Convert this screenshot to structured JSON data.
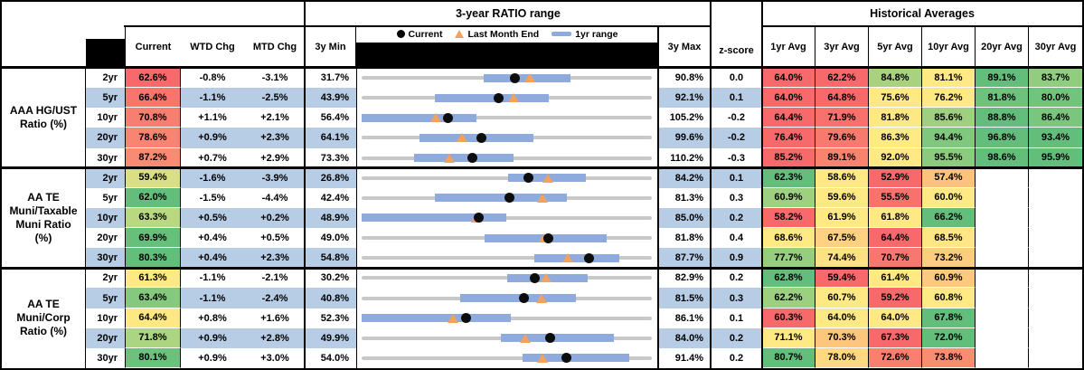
{
  "header": {
    "range_title": "3-year RATIO range",
    "hist_title": "Historical Averages"
  },
  "columns": {
    "current": "Current",
    "wtd": "WTD Chg",
    "mtd": "MTD Chg",
    "min": "3y Min",
    "max": "3y Max",
    "zscore": "z-score",
    "avgs": [
      "1yr Avg",
      "3yr Avg",
      "5yr Avg",
      "10yr Avg",
      "20yr Avg",
      "30yr Avg"
    ]
  },
  "legend": {
    "current": "Current",
    "last_month": "Last Month End",
    "range": "1yr range"
  },
  "colors": {
    "stripe": "#B7CCE5",
    "bar_blue": "#8FAADC",
    "track_gray": "#C8C8C8",
    "triangle_orange": "#F2A25C",
    "dot_black": "#0d0d0d",
    "scale_red": "#F8696B",
    "scale_yellow": "#FFE984",
    "scale_green": "#63BE7B"
  },
  "chart_data": {
    "type": "table",
    "range_plot": {
      "type": "range",
      "note": "per-row dumbbell: gray = 3y min-max, blue bar = 1yr range, dot = current, triangle = last month end",
      "legend_entries": [
        "Current",
        "Last Month End",
        "1yr range"
      ]
    },
    "groups": [
      {
        "label": "AAA HG/UST\nRatio (%)",
        "rows": [
          {
            "tenor": "2yr",
            "current": "62.6%",
            "cbg": "#F8696B",
            "wtd": "-0.8%",
            "mtd": "-3.1%",
            "min": "31.7%",
            "max": "90.8%",
            "z": "0.0",
            "bar": [
              56.3,
              73.8
            ],
            "cur": 62.6,
            "lme": 65.7,
            "avgs": [
              [
                "64.0%",
                "#F8696B"
              ],
              [
                "62.2%",
                "#F8696B"
              ],
              [
                "84.8%",
                "#A9D27F"
              ],
              [
                "81.1%",
                "#FFE984"
              ],
              [
                "89.1%",
                "#63BE7B"
              ],
              [
                "83.7%",
                "#90CD7E"
              ]
            ]
          },
          {
            "tenor": "5yr",
            "current": "66.4%",
            "cbg": "#F8756D",
            "wtd": "-1.1%",
            "mtd": "-2.5%",
            "min": "43.9%",
            "max": "92.1%",
            "z": "0.1",
            "bar": [
              55.9,
              74.7
            ],
            "cur": 66.4,
            "lme": 68.9,
            "avgs": [
              [
                "64.0%",
                "#F8696B"
              ],
              [
                "64.8%",
                "#F8696B"
              ],
              [
                "75.6%",
                "#FFE984"
              ],
              [
                "76.2%",
                "#FFE984"
              ],
              [
                "81.8%",
                "#6EC37C"
              ],
              [
                "80.0%",
                "#71C47C"
              ]
            ]
          },
          {
            "tenor": "10yr",
            "current": "70.8%",
            "cbg": "#F87F70",
            "wtd": "+1.1%",
            "mtd": "+2.1%",
            "min": "56.4%",
            "max": "105.2%",
            "z": "-0.2",
            "bar": [
              56.4,
              75.5
            ],
            "cur": 70.8,
            "lme": 68.7,
            "avgs": [
              [
                "64.4%",
                "#F8696B"
              ],
              [
                "71.9%",
                "#F8716D"
              ],
              [
                "81.8%",
                "#FDE883"
              ],
              [
                "85.6%",
                "#A0D07F"
              ],
              [
                "88.8%",
                "#63BE7B"
              ],
              [
                "86.4%",
                "#7AC67D"
              ]
            ]
          },
          {
            "tenor": "20yr",
            "current": "78.6%",
            "cbg": "#F98471",
            "wtd": "+0.9%",
            "mtd": "+2.3%",
            "min": "64.1%",
            "max": "99.6%",
            "z": "-0.2",
            "bar": [
              71.1,
              84.9
            ],
            "cur": 78.6,
            "lme": 76.3,
            "avgs": [
              [
                "76.4%",
                "#F8696B"
              ],
              [
                "79.6%",
                "#F87A6E"
              ],
              [
                "86.3%",
                "#FFEA84"
              ],
              [
                "94.4%",
                "#7FC87D"
              ],
              [
                "96.8%",
                "#63BE7B"
              ],
              [
                "93.4%",
                "#63BE7B"
              ]
            ]
          },
          {
            "tenor": "30yr",
            "current": "87.2%",
            "cbg": "#F98B72",
            "wtd": "+0.7%",
            "mtd": "+2.9%",
            "min": "73.3%",
            "max": "110.2%",
            "z": "-0.3",
            "bar": [
              79.9,
              92.4
            ],
            "cur": 87.2,
            "lme": 84.3,
            "avgs": [
              [
                "85.2%",
                "#F8696B"
              ],
              [
                "89.1%",
                "#F8836F"
              ],
              [
                "92.0%",
                "#FEE984"
              ],
              [
                "95.5%",
                "#8CCB7E"
              ],
              [
                "98.6%",
                "#63BE7B"
              ],
              [
                "95.9%",
                "#63BE7B"
              ]
            ]
          }
        ]
      },
      {
        "label": "AA TE\nMuni/Taxable\nMuni Ratio\n(%)",
        "rows": [
          {
            "tenor": "2yr",
            "current": "59.4%",
            "cbg": "#D9DF82",
            "wtd": "-1.6%",
            "mtd": "-3.9%",
            "min": "26.8%",
            "max": "84.2%",
            "z": "0.1",
            "bar": [
              55.5,
              70.8
            ],
            "cur": 59.4,
            "lme": 63.3,
            "avgs": [
              [
                "62.3%",
                "#63BE7B"
              ],
              [
                "58.6%",
                "#FFE984"
              ],
              [
                "52.9%",
                "#F8696B"
              ],
              [
                "57.4%",
                "#FDC37D"
              ],
              [
                "",
                null
              ],
              [
                "",
                null
              ]
            ]
          },
          {
            "tenor": "5yr",
            "current": "62.0%",
            "cbg": "#63BE7B",
            "wtd": "-1.5%",
            "mtd": "-4.4%",
            "min": "42.4%",
            "max": "81.3%",
            "z": "0.3",
            "bar": [
              52.1,
              69.7
            ],
            "cur": 62.0,
            "lme": 66.4,
            "avgs": [
              [
                "60.9%",
                "#9ED17F"
              ],
              [
                "59.6%",
                "#FFE984"
              ],
              [
                "55.5%",
                "#F8726D"
              ],
              [
                "60.0%",
                "#FFE984"
              ],
              [
                "",
                null
              ],
              [
                "",
                null
              ]
            ]
          },
          {
            "tenor": "10yr",
            "current": "63.3%",
            "cbg": "#B9D980",
            "wtd": "+0.5%",
            "mtd": "+0.2%",
            "min": "48.9%",
            "max": "85.0%",
            "z": "0.2",
            "bar": [
              48.9,
              66.7
            ],
            "cur": 63.3,
            "lme": 63.1,
            "avgs": [
              [
                "58.2%",
                "#F8696B"
              ],
              [
                "61.9%",
                "#FFE984"
              ],
              [
                "61.8%",
                "#FFE984"
              ],
              [
                "66.2%",
                "#63BE7B"
              ],
              [
                "",
                null
              ],
              [
                "",
                null
              ]
            ]
          },
          {
            "tenor": "20yr",
            "current": "69.9%",
            "cbg": "#66BF7B",
            "wtd": "+0.4%",
            "mtd": "+0.5%",
            "min": "49.0%",
            "max": "81.8%",
            "z": "0.4",
            "bar": [
              62.8,
              76.4
            ],
            "cur": 69.9,
            "lme": 69.4,
            "avgs": [
              [
                "68.6%",
                "#FFE984"
              ],
              [
                "67.5%",
                "#FED280"
              ],
              [
                "64.4%",
                "#F8696B"
              ],
              [
                "68.5%",
                "#FDE683"
              ],
              [
                "",
                null
              ],
              [
                "",
                null
              ]
            ]
          },
          {
            "tenor": "30yr",
            "current": "80.3%",
            "cbg": "#63BE7B",
            "wtd": "+0.4%",
            "mtd": "+2.3%",
            "min": "54.8%",
            "max": "87.7%",
            "z": "0.9",
            "bar": [
              74.2,
              83.7
            ],
            "cur": 80.3,
            "lme": 78.0,
            "avgs": [
              [
                "77.7%",
                "#95CE7F"
              ],
              [
                "74.4%",
                "#FEE183"
              ],
              [
                "70.7%",
                "#F87870"
              ],
              [
                "73.2%",
                "#FCCD7F"
              ],
              [
                "",
                null
              ],
              [
                "",
                null
              ]
            ]
          }
        ]
      },
      {
        "label": "AA TE\nMuni/Corp\nRatio (%)",
        "rows": [
          {
            "tenor": "2yr",
            "current": "61.3%",
            "cbg": "#FFE984",
            "wtd": "-1.1%",
            "mtd": "-2.1%",
            "min": "30.2%",
            "max": "82.9%",
            "z": "0.2",
            "bar": [
              56.4,
              70.8
            ],
            "cur": 61.3,
            "lme": 63.4,
            "avgs": [
              [
                "62.8%",
                "#63BE7B"
              ],
              [
                "59.4%",
                "#F8696B"
              ],
              [
                "61.4%",
                "#FFE984"
              ],
              [
                "60.9%",
                "#FCC97E"
              ],
              [
                "",
                null
              ],
              [
                "",
                null
              ]
            ]
          },
          {
            "tenor": "5yr",
            "current": "63.4%",
            "cbg": "#84C97D",
            "wtd": "-1.1%",
            "mtd": "-2.4%",
            "min": "40.8%",
            "max": "81.5%",
            "z": "0.3",
            "bar": [
              54.5,
              70.6
            ],
            "cur": 63.4,
            "lme": 65.8,
            "avgs": [
              [
                "62.2%",
                "#9AD07F"
              ],
              [
                "60.7%",
                "#FFE984"
              ],
              [
                "59.2%",
                "#F8696B"
              ],
              [
                "60.8%",
                "#FFE984"
              ],
              [
                "",
                null
              ],
              [
                "",
                null
              ]
            ]
          },
          {
            "tenor": "10yr",
            "current": "64.4%",
            "cbg": "#FEE883",
            "wtd": "+0.8%",
            "mtd": "+1.6%",
            "min": "52.3%",
            "max": "86.1%",
            "z": "0.1",
            "bar": [
              52.3,
              69.5
            ],
            "cur": 64.4,
            "lme": 62.8,
            "avgs": [
              [
                "60.3%",
                "#F8696B"
              ],
              [
                "64.0%",
                "#FFE984"
              ],
              [
                "64.0%",
                "#FFE984"
              ],
              [
                "67.8%",
                "#63BE7B"
              ],
              [
                "",
                null
              ],
              [
                "",
                null
              ]
            ]
          },
          {
            "tenor": "20yr",
            "current": "71.8%",
            "cbg": "#ABD580",
            "wtd": "+0.9%",
            "mtd": "+2.8%",
            "min": "49.9%",
            "max": "84.0%",
            "z": "0.2",
            "bar": [
              66.1,
              79.3
            ],
            "cur": 71.8,
            "lme": 69.0,
            "avgs": [
              [
                "71.1%",
                "#FFE984"
              ],
              [
                "70.3%",
                "#FDC67D"
              ],
              [
                "67.3%",
                "#F8696B"
              ],
              [
                "72.0%",
                "#63BE7B"
              ],
              [
                "",
                null
              ],
              [
                "",
                null
              ]
            ]
          },
          {
            "tenor": "30yr",
            "current": "80.1%",
            "cbg": "#6CC27C",
            "wtd": "+0.9%",
            "mtd": "+3.0%",
            "min": "54.0%",
            "max": "91.4%",
            "z": "0.2",
            "bar": [
              74.6,
              88.2
            ],
            "cur": 80.1,
            "lme": 77.1,
            "avgs": [
              [
                "80.7%",
                "#63BE7B"
              ],
              [
                "78.0%",
                "#FED981"
              ],
              [
                "72.6%",
                "#F9806F"
              ],
              [
                "73.8%",
                "#F98D72"
              ],
              [
                "",
                null
              ],
              [
                "",
                null
              ]
            ]
          }
        ]
      }
    ]
  }
}
